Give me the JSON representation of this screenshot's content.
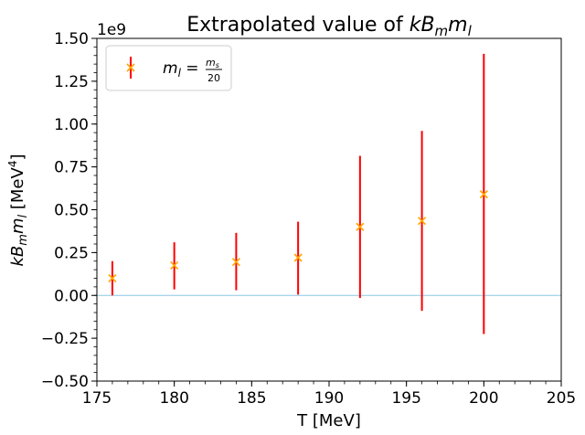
{
  "chart_data": {
    "type": "scatter",
    "title_prefix": "Extrapolated value of ",
    "title_math_k": "k",
    "title_math_B": "B",
    "title_math_m_sub": "m",
    "title_math_m": "m",
    "title_math_l_sub": "l",
    "xlabel": "T [MeV]",
    "ylabel_k": "k",
    "ylabel_B": "B",
    "ylabel_m_sub": "m",
    "ylabel_m": "m",
    "ylabel_l_sub": "l",
    "ylabel_unit": "[MeV",
    "ylabel_unit_exp": "4",
    "ylabel_unit_close": "]",
    "offset_base": "1e9",
    "xlim": [
      175,
      205
    ],
    "ylim": [
      -0.5,
      1.5
    ],
    "xticks": [
      175,
      180,
      185,
      190,
      195,
      200,
      205
    ],
    "xtick_labels": [
      "175",
      "180",
      "185",
      "190",
      "195",
      "200",
      "205"
    ],
    "yticks": [
      -0.5,
      -0.25,
      0.0,
      0.25,
      0.5,
      0.75,
      1.0,
      1.25,
      1.5
    ],
    "ytick_labels": [
      "−0.50",
      "−0.25",
      "0.00",
      "0.25",
      "0.50",
      "0.75",
      "1.00",
      "1.25",
      "1.50"
    ],
    "hline_y": 0.0,
    "legend": {
      "placement": "top-left",
      "m": "m",
      "l_sub": "l",
      "eq": " = ",
      "num_m": "m",
      "num_sub": "s",
      "den": "20"
    },
    "series": [
      {
        "name": "m_l = m_s/20",
        "marker": "x",
        "marker_color": "#ffa500",
        "errorbar_color": "#ff0000",
        "x": [
          176,
          180,
          184,
          188,
          192,
          196,
          200
        ],
        "y": [
          0.1,
          0.175,
          0.195,
          0.22,
          0.4,
          0.435,
          0.59
        ],
        "y_low": [
          0.0,
          0.035,
          0.03,
          0.005,
          -0.015,
          -0.09,
          -0.225
        ],
        "y_high": [
          0.2,
          0.31,
          0.365,
          0.43,
          0.815,
          0.96,
          1.41
        ]
      }
    ],
    "colors": {
      "hline": "#8ec7e6",
      "axis": "#000000"
    }
  }
}
